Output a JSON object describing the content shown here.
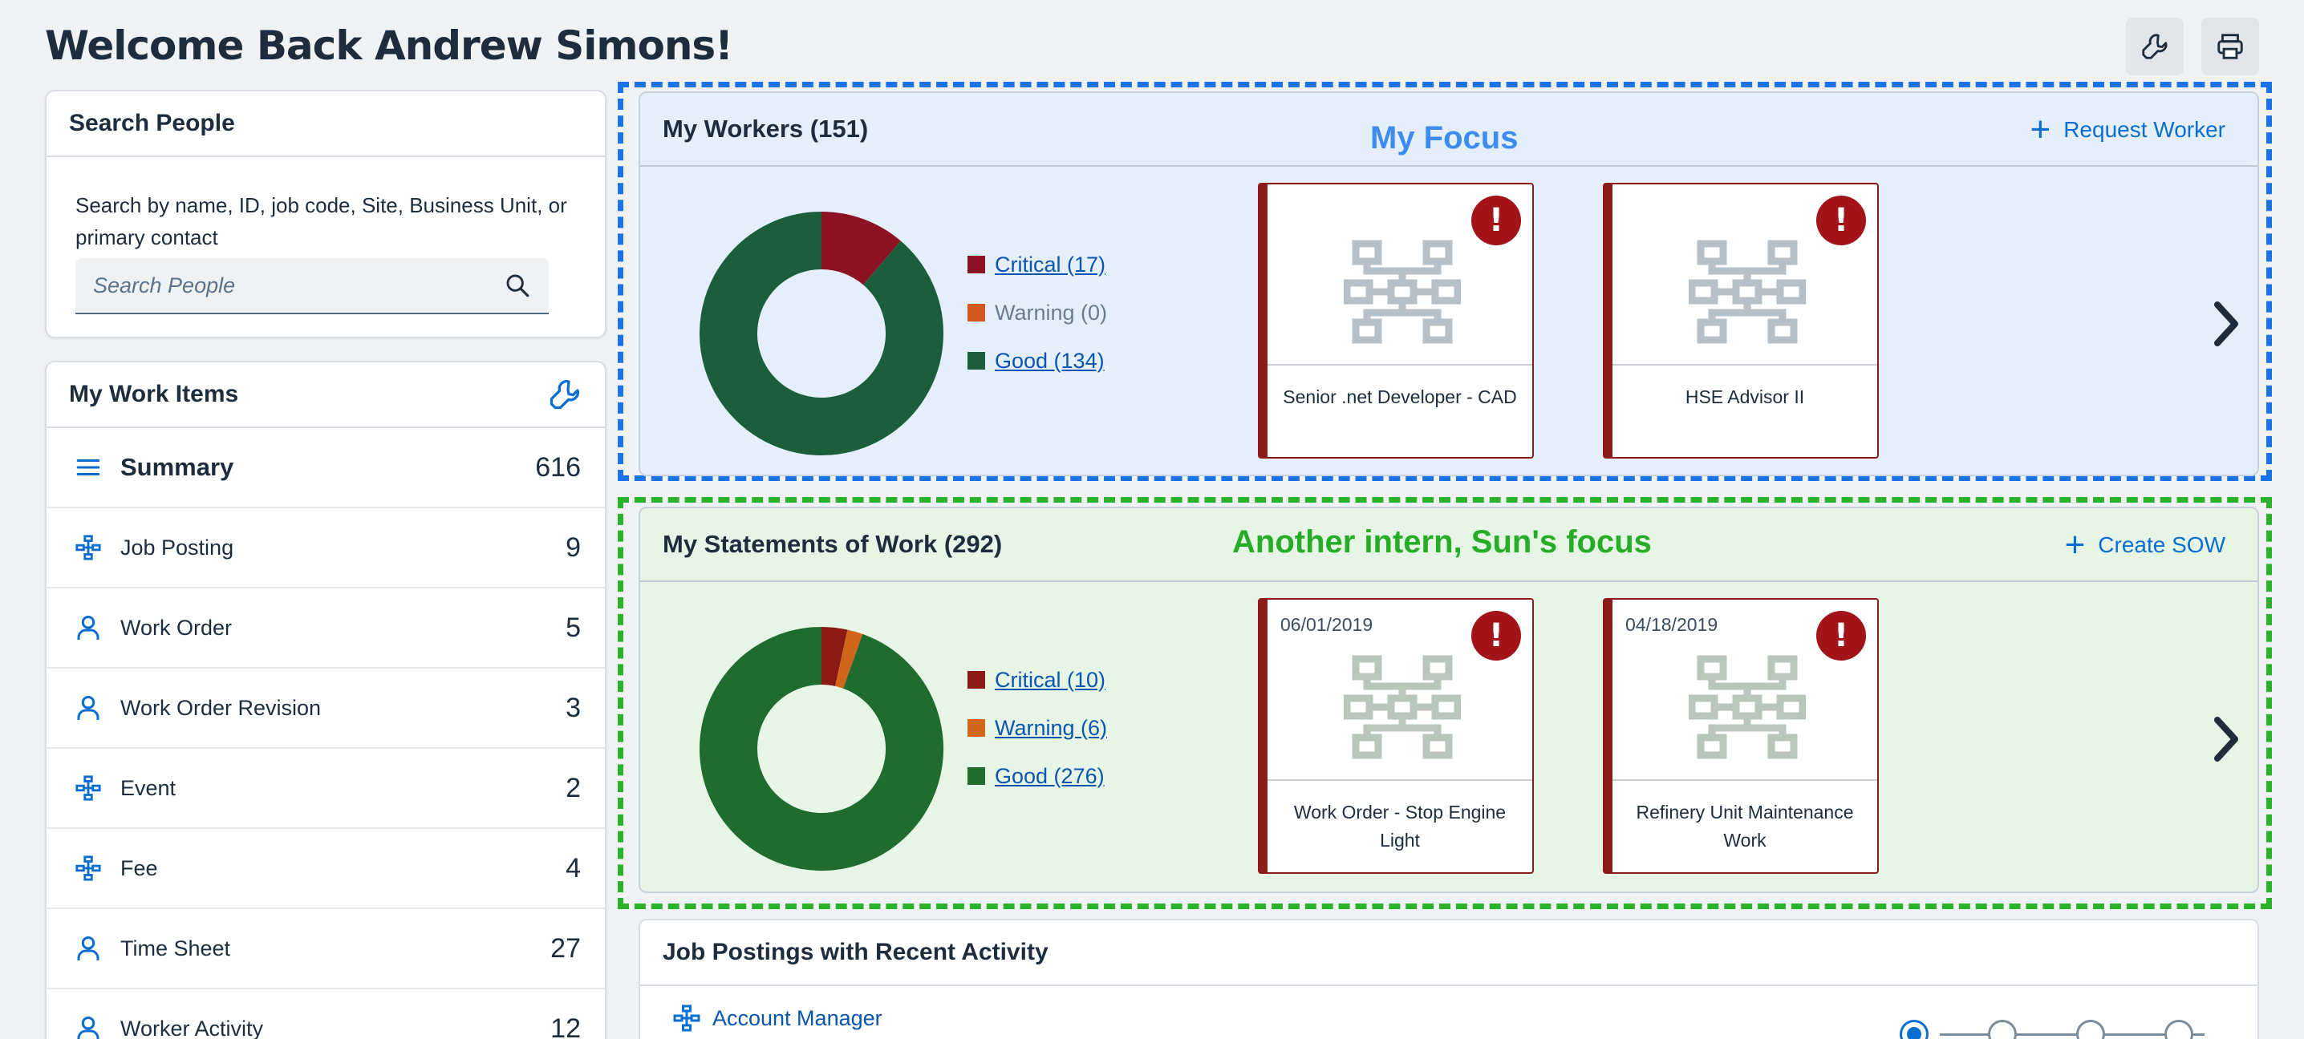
{
  "header": {
    "title": "Welcome Back Andrew Simons!",
    "tools_icon": "wrench-icon",
    "print_icon": "printer-icon"
  },
  "search_people": {
    "title": "Search People",
    "description": "Search by name, ID, job code, Site, Business Unit, or primary contact",
    "placeholder": "Search People"
  },
  "work_items": {
    "title": "My Work Items",
    "items": [
      {
        "label": "Summary",
        "count": "616",
        "icon": "menu-icon"
      },
      {
        "label": "Job Posting",
        "count": "9",
        "icon": "org-chart-icon"
      },
      {
        "label": "Work Order",
        "count": "5",
        "icon": "person-icon"
      },
      {
        "label": "Work Order Revision",
        "count": "3",
        "icon": "person-icon"
      },
      {
        "label": "Event",
        "count": "2",
        "icon": "org-chart-icon"
      },
      {
        "label": "Fee",
        "count": "4",
        "icon": "org-chart-icon"
      },
      {
        "label": "Time Sheet",
        "count": "27",
        "icon": "person-icon"
      },
      {
        "label": "Worker Activity",
        "count": "12",
        "icon": "person-icon"
      }
    ]
  },
  "workers": {
    "title": "My Workers (151)",
    "action": "Request Worker",
    "annotation": "My Focus",
    "legend": [
      {
        "label": "Critical (17)",
        "value": 17,
        "color": "#8b1324",
        "link": true
      },
      {
        "label": "Warning (0)",
        "value": 0,
        "color": "#d1581f",
        "link": false
      },
      {
        "label": "Good (134)",
        "value": 134,
        "color": "#1c5e3c",
        "link": true
      }
    ],
    "tiles": [
      {
        "name": "Senior .net Developer - CAD",
        "date": ""
      },
      {
        "name": "HSE Advisor II",
        "date": ""
      }
    ]
  },
  "sow": {
    "title": "My Statements of Work (292)",
    "action": "Create SOW",
    "annotation": "Another intern, Sun's focus",
    "legend": [
      {
        "label": "Critical (10)",
        "value": 10,
        "color": "#8b1a14",
        "link": true
      },
      {
        "label": "Warning (6)",
        "value": 6,
        "color": "#d1661a",
        "link": true
      },
      {
        "label": "Good (276)",
        "value": 276,
        "color": "#206b2e",
        "link": true
      }
    ],
    "tiles": [
      {
        "name": "Work Order - Stop Engine Light",
        "date": "06/01/2019"
      },
      {
        "name": "Refinery Unit Maintenance Work",
        "date": "04/18/2019"
      }
    ]
  },
  "job_postings": {
    "title": "Job Postings with Recent Activity",
    "first_item": "Account Manager"
  },
  "colors": {
    "focus_blue": "#1a73e8",
    "focus_green": "#2ab32a",
    "link": "#0a55b0"
  }
}
